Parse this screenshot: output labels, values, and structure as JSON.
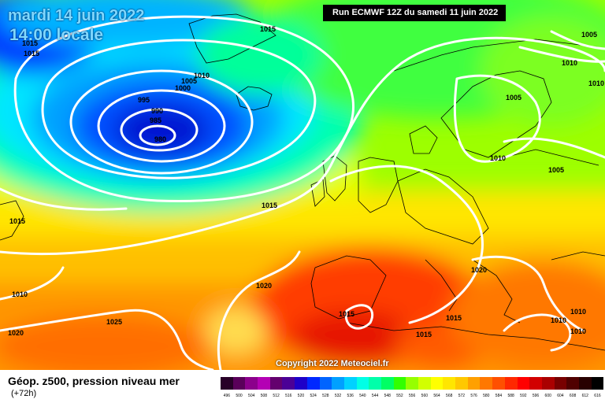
{
  "header": {
    "date": "mardi 14 juin 2022",
    "local_time": "14:00 locale",
    "run": "Run ECMWF 12Z du samedi 11 juin 2022"
  },
  "footer": {
    "title": "Géop. z500, pression niveau mer",
    "lead": "(+72h)",
    "copyright": "Copyright 2022 Meteociel.fr"
  },
  "scale": {
    "labels": [
      "496",
      "500",
      "504",
      "508",
      "512",
      "516",
      "520",
      "524",
      "528",
      "532",
      "536",
      "540",
      "544",
      "548",
      "552",
      "556",
      "560",
      "564",
      "568",
      "572",
      "576",
      "580",
      "584",
      "588",
      "592",
      "596",
      "600",
      "604",
      "608",
      "612",
      "616"
    ],
    "colors": [
      "#280028",
      "#5a005a",
      "#8c008c",
      "#b400b4",
      "#64006e",
      "#4b0096",
      "#1e00c8",
      "#0028ff",
      "#0064ff",
      "#00a0ff",
      "#00d2ff",
      "#00ffe6",
      "#00ffaa",
      "#00ff64",
      "#32ff00",
      "#96ff00",
      "#d2ff00",
      "#ffff00",
      "#ffe600",
      "#ffc800",
      "#ffa000",
      "#ff7800",
      "#ff5000",
      "#ff2800",
      "#ff0000",
      "#d20000",
      "#aa0000",
      "#780000",
      "#500000",
      "#280000",
      "#000000"
    ]
  },
  "isobar_labels": [
    {
      "text": "1015"
    },
    {
      "text": "1015"
    },
    {
      "text": "1015"
    },
    {
      "text": "1010"
    },
    {
      "text": "1005"
    },
    {
      "text": "1000"
    },
    {
      "text": "995"
    },
    {
      "text": "990"
    },
    {
      "text": "985"
    },
    {
      "text": "980"
    },
    {
      "text": "1005"
    },
    {
      "text": "1010"
    },
    {
      "text": "1010"
    },
    {
      "text": "1005"
    },
    {
      "text": "1010"
    },
    {
      "text": "1005"
    },
    {
      "text": "1015"
    },
    {
      "text": "1015"
    },
    {
      "text": "1010"
    },
    {
      "text": "1020"
    },
    {
      "text": "1025"
    },
    {
      "text": "1020"
    },
    {
      "text": "1015"
    },
    {
      "text": "1015"
    },
    {
      "text": "1015"
    },
    {
      "text": "1020"
    },
    {
      "text": "1010"
    },
    {
      "text": "1010"
    },
    {
      "text": "1010"
    }
  ]
}
